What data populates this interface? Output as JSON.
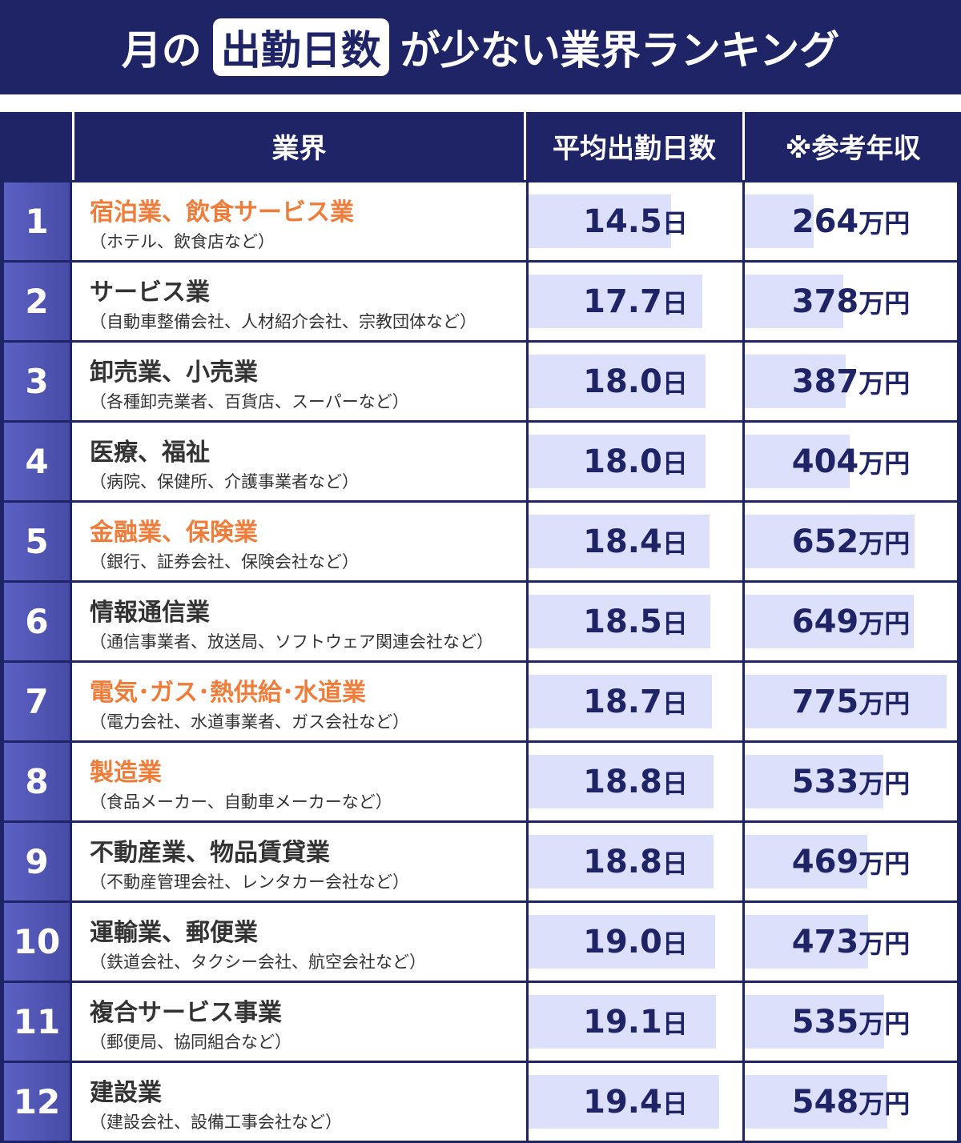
{
  "header": {
    "title_before": "月の",
    "title_box": "出勤日数",
    "title_after": "が少ない業界ランキング"
  },
  "table": {
    "columns": {
      "rank": "",
      "industry": "業界",
      "days": "平均出勤日数",
      "income": "※参考年収"
    },
    "days_unit": "日",
    "income_unit": "万円",
    "highlight_color": "#f07c3a",
    "bar_color": "#dde0fa",
    "rows": [
      {
        "rank": 1,
        "name": "宿泊業、飲食サービス業",
        "note": "（ホテル、飲食店など）",
        "highlight": true,
        "days": 14.5,
        "days_label": "14.5",
        "income": 264
      },
      {
        "rank": 2,
        "name": "サービス業",
        "note": "（自動車整備会社、人材紹介会社、宗教団体など）",
        "highlight": false,
        "days": 17.7,
        "days_label": "17.7",
        "income": 378
      },
      {
        "rank": 3,
        "name": "卸売業、小売業",
        "note": "（各種卸売業者、百貨店、スーパーなど）",
        "highlight": false,
        "days": 18.0,
        "days_label": "18.0",
        "income": 387
      },
      {
        "rank": 4,
        "name": "医療、福祉",
        "note": "（病院、保健所、介護事業者など）",
        "highlight": false,
        "days": 18.0,
        "days_label": "18.0",
        "income": 404
      },
      {
        "rank": 5,
        "name": "金融業、保険業",
        "note": "（銀行、証券会社、保険会社など）",
        "highlight": true,
        "days": 18.4,
        "days_label": "18.4",
        "income": 652
      },
      {
        "rank": 6,
        "name": "情報通信業",
        "note": "（通信事業者、放送局、ソフトウェア関連会社など）",
        "highlight": false,
        "days": 18.5,
        "days_label": "18.5",
        "income": 649
      },
      {
        "rank": 7,
        "name": "電気･ガス･熱供給･水道業",
        "note": "（電力会社、水道事業者、ガス会社など）",
        "highlight": true,
        "days": 18.7,
        "days_label": "18.7",
        "income": 775
      },
      {
        "rank": 8,
        "name": "製造業",
        "note": "（食品メーカー、自動車メーカーなど）",
        "highlight": true,
        "days": 18.8,
        "days_label": "18.8",
        "income": 533
      },
      {
        "rank": 9,
        "name": "不動産業、物品賃貸業",
        "note": "（不動産管理会社、レンタカー会社など）",
        "highlight": false,
        "days": 18.8,
        "days_label": "18.8",
        "income": 469
      },
      {
        "rank": 10,
        "name": "運輸業、郵便業",
        "note": "（鉄道会社、タクシー会社、航空会社など）",
        "highlight": false,
        "days": 19.0,
        "days_label": "19.0",
        "income": 473
      },
      {
        "rank": 11,
        "name": "複合サービス事業",
        "note": "（郵便局、協同組合など）",
        "highlight": false,
        "days": 19.1,
        "days_label": "19.1",
        "income": 535
      },
      {
        "rank": 12,
        "name": "建設業",
        "note": "（建設会社、設備工事会社など）",
        "highlight": false,
        "days": 19.4,
        "days_label": "19.4",
        "income": 548
      }
    ]
  }
}
